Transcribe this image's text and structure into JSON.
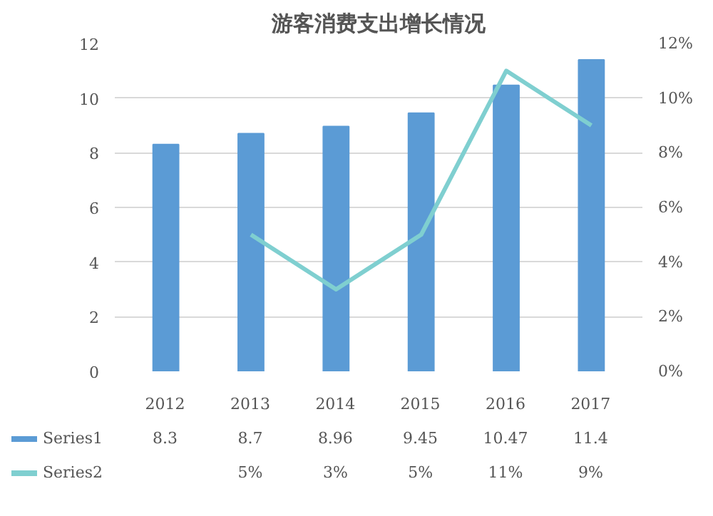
{
  "chart_data": {
    "type": "bar",
    "title": "游客消费支出增长情况",
    "categories": [
      "2012",
      "2013",
      "2014",
      "2015",
      "2016",
      "2017"
    ],
    "series": [
      {
        "name": "Series1",
        "color": "#5b9bd5",
        "values": [
          8.3,
          8.7,
          8.96,
          9.45,
          10.47,
          11.4
        ],
        "value_labels": [
          "8.3",
          "8.7",
          "8.96",
          "9.45",
          "10.47",
          "11.4"
        ]
      },
      {
        "name": "Series2",
        "type": "line",
        "axis": "y2",
        "color": "#7fcfd0",
        "values": [
          null,
          5,
          3,
          5,
          11,
          9
        ],
        "value_labels": [
          null,
          "5%",
          "3%",
          "5%",
          "11%",
          "9%"
        ]
      }
    ],
    "ylim": [
      0,
      12
    ],
    "yticks": [
      0,
      2,
      4,
      6,
      8,
      10,
      12
    ],
    "y2lim": [
      0,
      12
    ],
    "y2ticks": [
      {
        "value": 0,
        "label": "0%"
      },
      {
        "value": 2,
        "label": "2%"
      },
      {
        "value": 4,
        "label": "4%"
      },
      {
        "value": 6,
        "label": "6%"
      },
      {
        "value": 8,
        "label": "8%"
      },
      {
        "value": 10,
        "label": "10%"
      },
      {
        "value": 12,
        "label": "12%"
      }
    ],
    "grid": "y",
    "legend": "bottom"
  }
}
